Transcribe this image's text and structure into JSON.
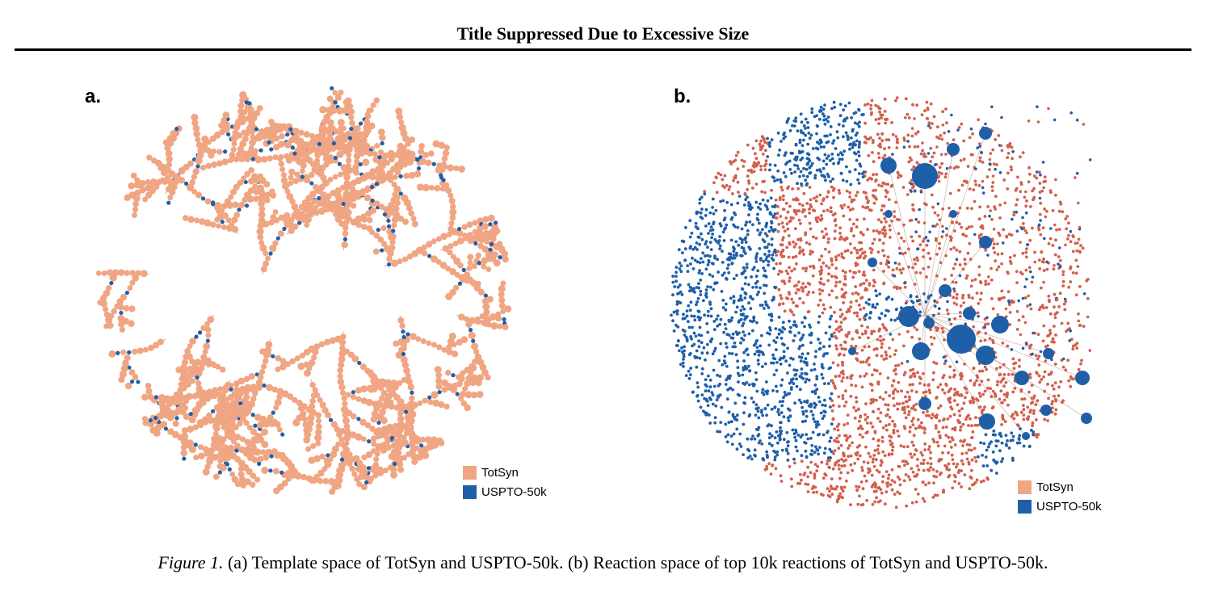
{
  "header": {
    "running_title": "Title Suppressed Due to Excessive Size"
  },
  "colors": {
    "totsyn_a": "#f0a583",
    "totsyn_b": "#d2604e",
    "uspto": "#1f5fa8",
    "edge": "#bfa89e"
  },
  "figure": {
    "panels": [
      {
        "id": "a",
        "label": "a.",
        "legend": [
          {
            "name": "TotSyn",
            "color": "#f0a583"
          },
          {
            "name": "USPTO-50k",
            "color": "#1f5fa8"
          }
        ]
      },
      {
        "id": "b",
        "label": "b.",
        "legend": [
          {
            "name": "TotSyn",
            "color": "#f0a583"
          },
          {
            "name": "USPTO-50k",
            "color": "#1f5fa8"
          }
        ]
      }
    ],
    "caption": {
      "label": "Figure 1.",
      "text": "(a) Template space of TotSyn and USPTO-50k. (b) Reaction space of top 10k reactions of TotSyn and USPTO-50k."
    }
  }
}
